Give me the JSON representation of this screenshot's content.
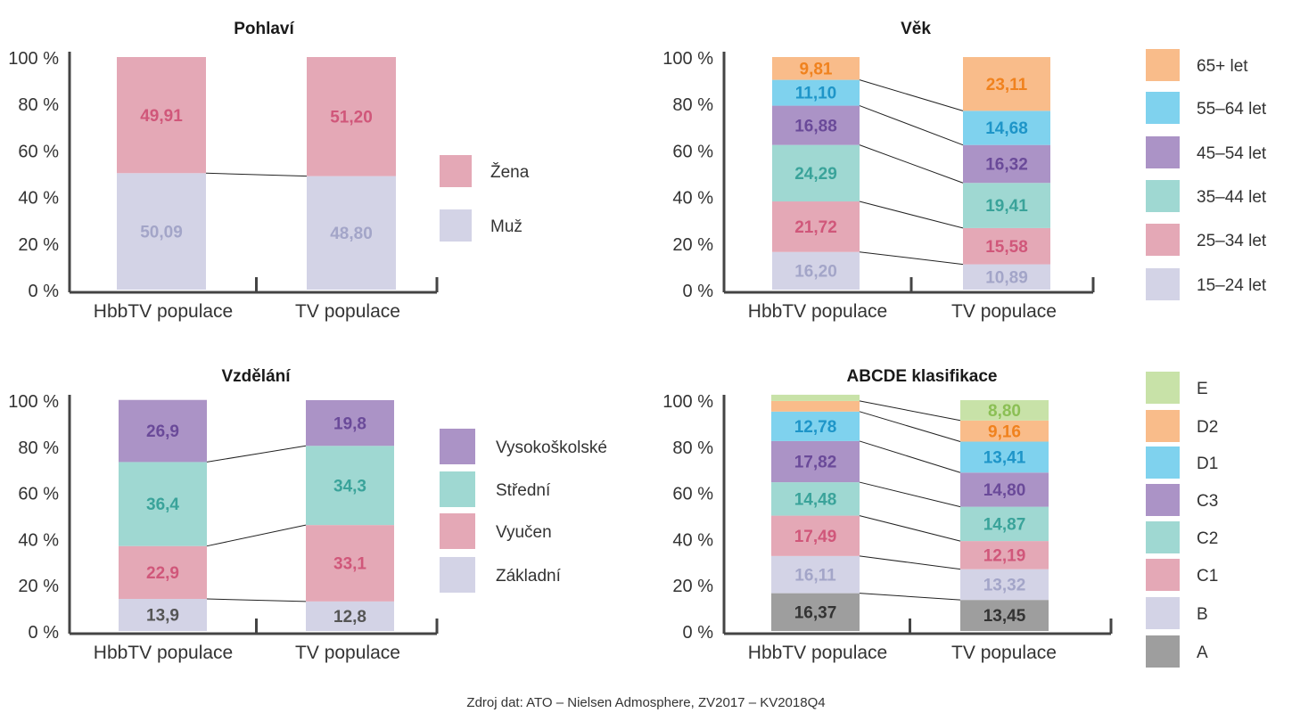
{
  "source_note": "Zdroj dat: ATO – Nielsen Admosphere, ZV2017 – KV2018Q4",
  "y_tick_labels": [
    "0 %",
    "20 %",
    "40 %",
    "60 %",
    "80 %",
    "100 %"
  ],
  "colors": {
    "zena": "#e4a8b6",
    "muz": "#d3d3e6",
    "age_65": "#f9bc8a",
    "age_55": "#7fd2ee",
    "age_45": "#ab93c6",
    "age_35": "#9fd8d2",
    "age_25": "#e4a8b6",
    "age_15": "#d3d3e6",
    "edu_vs": "#ab93c6",
    "edu_st": "#9fd8d2",
    "edu_vy": "#e4a8b6",
    "edu_za": "#d3d3e6",
    "abc_E": "#c8e2a8",
    "abc_D2": "#f9bc8a",
    "abc_D1": "#7fd2ee",
    "abc_C3": "#ab93c6",
    "abc_C2": "#9fd8d2",
    "abc_C1": "#e4a8b6",
    "abc_B": "#d3d3e6",
    "abc_A": "#9e9e9e",
    "axis": "#444444",
    "connector": "#222222"
  },
  "chart_data": [
    {
      "type": "bar",
      "stacked": true,
      "title": "Pohlaví",
      "categories": [
        "HbbTV populace",
        "TV populace"
      ],
      "ylim": [
        0,
        100
      ],
      "series": [
        {
          "name": "Muž",
          "color_key": "muz",
          "text_color": "#a3a5c8",
          "labels": [
            "50,09",
            "48,80"
          ],
          "values": [
            50.09,
            48.8
          ]
        },
        {
          "name": "Žena",
          "color_key": "zena",
          "text_color": "#d0577a",
          "labels": [
            "49,91",
            "51,20"
          ],
          "values": [
            49.91,
            51.2
          ]
        }
      ]
    },
    {
      "type": "bar",
      "stacked": true,
      "title": "Věk",
      "categories": [
        "HbbTV populace",
        "TV populace"
      ],
      "ylim": [
        0,
        100
      ],
      "series": [
        {
          "name": "15–24 let",
          "color_key": "age_15",
          "text_color": "#a3a5c8",
          "labels": [
            "16,20",
            "10,89"
          ],
          "values": [
            16.2,
            10.89
          ]
        },
        {
          "name": "25–34 let",
          "color_key": "age_25",
          "text_color": "#d0577a",
          "labels": [
            "21,72",
            "15,58"
          ],
          "values": [
            21.72,
            15.58
          ]
        },
        {
          "name": "35–44 let",
          "color_key": "age_35",
          "text_color": "#3aa39a",
          "labels": [
            "24,29",
            "19,41"
          ],
          "values": [
            24.29,
            19.41
          ]
        },
        {
          "name": "45–54 let",
          "color_key": "age_45",
          "text_color": "#6a4a99",
          "labels": [
            "16,88",
            "16,32"
          ],
          "values": [
            16.88,
            16.32
          ]
        },
        {
          "name": "55–64 let",
          "color_key": "age_55",
          "text_color": "#1e95c8",
          "labels": [
            "11,10",
            "14,68"
          ],
          "values": [
            11.1,
            14.68
          ]
        },
        {
          "name": "65+ let",
          "color_key": "age_65",
          "text_color": "#f0821e",
          "labels": [
            "9,81",
            "23,11"
          ],
          "values": [
            9.81,
            23.11
          ]
        }
      ]
    },
    {
      "type": "bar",
      "stacked": true,
      "title": "Vzdělání",
      "categories": [
        "HbbTV populace",
        "TV populace"
      ],
      "ylim": [
        0,
        100
      ],
      "series": [
        {
          "name": "Základní",
          "color_key": "edu_za",
          "text_color": "#555555",
          "labels": [
            "13,9",
            "12,8"
          ],
          "values": [
            13.9,
            12.8
          ]
        },
        {
          "name": "Vyučen",
          "color_key": "edu_vy",
          "text_color": "#d0577a",
          "labels": [
            "22,9",
            "33,1"
          ],
          "values": [
            22.9,
            33.1
          ]
        },
        {
          "name": "Střední",
          "color_key": "edu_st",
          "text_color": "#3aa39a",
          "labels": [
            "36,4",
            "34,3"
          ],
          "values": [
            36.4,
            34.3
          ]
        },
        {
          "name": "Vysokoškolské",
          "color_key": "edu_vs",
          "text_color": "#6a4a99",
          "labels": [
            "26,9",
            "19,8"
          ],
          "values": [
            26.9,
            19.8
          ]
        }
      ]
    },
    {
      "type": "bar",
      "stacked": true,
      "title": "ABCDE klasifikace",
      "categories": [
        "HbbTV populace",
        "TV populace"
      ],
      "ylim": [
        0,
        100
      ],
      "series": [
        {
          "name": "A",
          "color_key": "abc_A",
          "text_color": "#333333",
          "labels": [
            "16,37",
            "13,45"
          ],
          "values": [
            16.37,
            13.45
          ]
        },
        {
          "name": "B",
          "color_key": "abc_B",
          "text_color": "#a3a5c8",
          "labels": [
            "16,11",
            "13,32"
          ],
          "values": [
            16.11,
            13.32
          ]
        },
        {
          "name": "C1",
          "color_key": "abc_C1",
          "text_color": "#d0577a",
          "labels": [
            "17,49",
            "12,19"
          ],
          "values": [
            17.49,
            12.19
          ]
        },
        {
          "name": "C2",
          "color_key": "abc_C2",
          "text_color": "#3aa39a",
          "labels": [
            "14,48",
            "14,87"
          ],
          "values": [
            14.48,
            14.87
          ]
        },
        {
          "name": "C3",
          "color_key": "abc_C3",
          "text_color": "#6a4a99",
          "labels": [
            "17,82",
            "14,80"
          ],
          "values": [
            17.82,
            14.8
          ]
        },
        {
          "name": "D1",
          "color_key": "abc_D1",
          "text_color": "#1e95c8",
          "labels": [
            "12,78",
            "13,41"
          ],
          "values": [
            12.78,
            13.41
          ]
        },
        {
          "name": "D2",
          "color_key": "abc_D2",
          "text_color": "#f0821e",
          "labels": [
            "",
            "9,16"
          ],
          "values": [
            4.6,
            9.16
          ]
        },
        {
          "name": "E",
          "color_key": "abc_E",
          "text_color": "#8bbf55",
          "labels": [
            "",
            "8,80"
          ],
          "values": [
            2.7,
            8.8
          ]
        }
      ]
    }
  ]
}
